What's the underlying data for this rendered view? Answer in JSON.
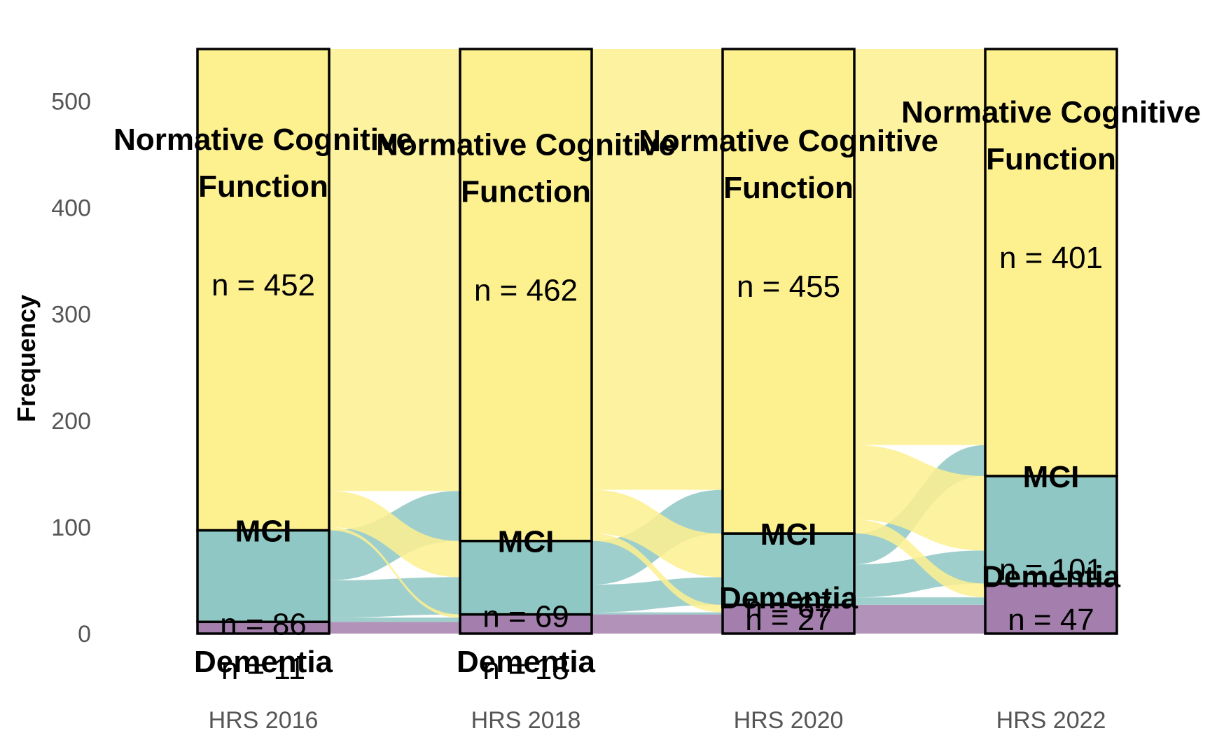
{
  "chart_data": {
    "type": "alluvial",
    "ylabel": "Frequency",
    "yticks": [
      0,
      100,
      200,
      300,
      400,
      500
    ],
    "ylim": [
      0,
      551
    ],
    "waves": [
      "HRS 2016",
      "HRS 2018",
      "HRS 2020",
      "HRS 2022"
    ],
    "categories": [
      "Normative Cognitive Function",
      "MCI",
      "Dementia"
    ],
    "colors": {
      "Normative Cognitive Function": "#FDF08F",
      "MCI": "#8EC7C3",
      "Dementia": "#A47FAD"
    },
    "counts": [
      {
        "wave": "HRS 2016",
        "Normative Cognitive Function": 452,
        "MCI": 86,
        "Dementia": 11
      },
      {
        "wave": "HRS 2018",
        "Normative Cognitive Function": 462,
        "MCI": 69,
        "Dementia": 18
      },
      {
        "wave": "HRS 2020",
        "Normative Cognitive Function": 455,
        "MCI": 67,
        "Dementia": 27
      },
      {
        "wave": "HRS 2022",
        "Normative Cognitive Function": 401,
        "MCI": 101,
        "Dementia": 47
      }
    ],
    "labels": [
      {
        "name": "Normative Cognitive",
        "name2": "Function",
        "n": "n = 452",
        "wave": 0,
        "cat": 0
      },
      {
        "name": "MCI",
        "n": "n = 86",
        "wave": 0,
        "cat": 1
      },
      {
        "name": "Dementia",
        "n": "n = 11",
        "wave": 0,
        "cat": 2
      },
      {
        "name": "Normative Cognitive",
        "name2": "Function",
        "n": "n = 462",
        "wave": 1,
        "cat": 0
      },
      {
        "name": "MCI",
        "n": "n = 69",
        "wave": 1,
        "cat": 1
      },
      {
        "name": "Dementia",
        "n": "n = 18",
        "wave": 1,
        "cat": 2
      },
      {
        "name": "Normative Cognitive",
        "name2": "Function",
        "n": "n = 455",
        "wave": 2,
        "cat": 0
      },
      {
        "name": "MCI",
        "n": "n = 67",
        "wave": 2,
        "cat": 1
      },
      {
        "name": "Dementia",
        "n": "n = 27",
        "wave": 2,
        "cat": 2
      },
      {
        "name": "Normative Cognitive",
        "name2": "Function",
        "n": "n = 401",
        "wave": 3,
        "cat": 0
      },
      {
        "name": "MCI",
        "n": "n = 101",
        "wave": 3,
        "cat": 1
      },
      {
        "name": "Dementia",
        "n": "n = 47",
        "wave": 3,
        "cat": 2
      }
    ],
    "flows": [
      {
        "from_wave": 0,
        "to_wave": 1,
        "from": "Normative Cognitive Function",
        "to": "Normative Cognitive Function",
        "value": 415
      },
      {
        "from_wave": 0,
        "to_wave": 1,
        "from": "Normative Cognitive Function",
        "to": "MCI",
        "value": 34
      },
      {
        "from_wave": 0,
        "to_wave": 1,
        "from": "Normative Cognitive Function",
        "to": "Dementia",
        "value": 3
      },
      {
        "from_wave": 0,
        "to_wave": 1,
        "from": "MCI",
        "to": "Normative Cognitive Function",
        "value": 47
      },
      {
        "from_wave": 0,
        "to_wave": 1,
        "from": "MCI",
        "to": "MCI",
        "value": 35
      },
      {
        "from_wave": 0,
        "to_wave": 1,
        "from": "MCI",
        "to": "Dementia",
        "value": 4
      },
      {
        "from_wave": 0,
        "to_wave": 1,
        "from": "Dementia",
        "to": "Dementia",
        "value": 11
      },
      {
        "from_wave": 1,
        "to_wave": 2,
        "from": "Normative Cognitive Function",
        "to": "Normative Cognitive Function",
        "value": 414
      },
      {
        "from_wave": 1,
        "to_wave": 2,
        "from": "Normative Cognitive Function",
        "to": "MCI",
        "value": 41
      },
      {
        "from_wave": 1,
        "to_wave": 2,
        "from": "Normative Cognitive Function",
        "to": "Dementia",
        "value": 7
      },
      {
        "from_wave": 1,
        "to_wave": 2,
        "from": "MCI",
        "to": "Normative Cognitive Function",
        "value": 41
      },
      {
        "from_wave": 1,
        "to_wave": 2,
        "from": "MCI",
        "to": "MCI",
        "value": 26
      },
      {
        "from_wave": 1,
        "to_wave": 2,
        "from": "MCI",
        "to": "Dementia",
        "value": 2
      },
      {
        "from_wave": 1,
        "to_wave": 2,
        "from": "Dementia",
        "to": "Dementia",
        "value": 18
      },
      {
        "from_wave": 2,
        "to_wave": 3,
        "from": "Normative Cognitive Function",
        "to": "Normative Cognitive Function",
        "value": 372
      },
      {
        "from_wave": 2,
        "to_wave": 3,
        "from": "Normative Cognitive Function",
        "to": "MCI",
        "value": 70
      },
      {
        "from_wave": 2,
        "to_wave": 3,
        "from": "Normative Cognitive Function",
        "to": "Dementia",
        "value": 13
      },
      {
        "from_wave": 2,
        "to_wave": 3,
        "from": "MCI",
        "to": "Normative Cognitive Function",
        "value": 29
      },
      {
        "from_wave": 2,
        "to_wave": 3,
        "from": "MCI",
        "to": "MCI",
        "value": 31
      },
      {
        "from_wave": 2,
        "to_wave": 3,
        "from": "MCI",
        "to": "Dementia",
        "value": 7
      },
      {
        "from_wave": 2,
        "to_wave": 3,
        "from": "Dementia",
        "to": "Dementia",
        "value": 27
      }
    ]
  }
}
